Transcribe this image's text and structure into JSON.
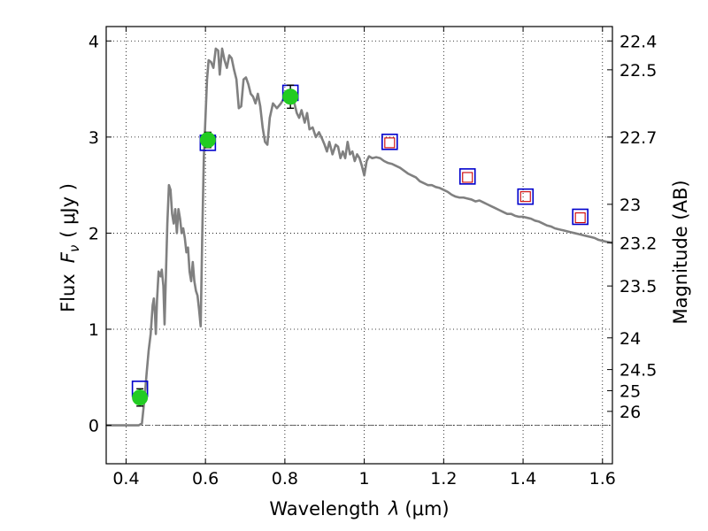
{
  "chart_data": {
    "type": "line",
    "xlabel_prefix": "Wavelength",
    "xlabel_symbol": "λ",
    "xlabel_unit": "(μm)",
    "ylabel_prefix": "Flux",
    "ylabel_symbol": "F",
    "ylabel_subscript": "ν",
    "ylabel_unit": "( μJy )",
    "y2label": "Magnitude (AB)",
    "xlim": [
      0.35,
      1.625
    ],
    "ylim": [
      -0.4,
      4.15
    ],
    "grid": true,
    "x_ticks": [
      0.4,
      0.6,
      0.8,
      1.0,
      1.2,
      1.4,
      1.6
    ],
    "x_tick_labels": [
      "0.4",
      "0.6",
      "0.8",
      "1",
      "1.2",
      "1.4",
      "1.6"
    ],
    "y_ticks": [
      0,
      1,
      2,
      3,
      4
    ],
    "y_tick_labels": [
      "0",
      "1",
      "2",
      "3",
      "4"
    ],
    "magnitude_ticks": [
      {
        "label": "22.4",
        "flux": 4.0
      },
      {
        "label": "22.5",
        "flux": 3.7
      },
      {
        "label": "22.7",
        "flux": 3.0
      },
      {
        "label": "23",
        "flux": 2.3
      },
      {
        "label": "23.2",
        "flux": 1.9
      },
      {
        "label": "23.5",
        "flux": 1.45
      },
      {
        "label": "24",
        "flux": 0.91
      },
      {
        "label": "24.5",
        "flux": 0.58
      },
      {
        "label": "25",
        "flux": 0.36
      },
      {
        "label": "26",
        "flux": 0.145
      }
    ],
    "model_color": "#808080",
    "model_spectrum": [
      [
        0.35,
        0
      ],
      [
        0.38,
        0
      ],
      [
        0.4,
        0
      ],
      [
        0.42,
        0
      ],
      [
        0.432,
        0
      ],
      [
        0.44,
        0.02
      ],
      [
        0.447,
        0.3
      ],
      [
        0.452,
        0.55
      ],
      [
        0.457,
        0.78
      ],
      [
        0.462,
        0.95
      ],
      [
        0.467,
        1.25
      ],
      [
        0.47,
        1.32
      ],
      [
        0.473,
        1.15
      ],
      [
        0.475,
        0.95
      ],
      [
        0.478,
        1.3
      ],
      [
        0.482,
        1.6
      ],
      [
        0.487,
        1.55
      ],
      [
        0.49,
        1.62
      ],
      [
        0.494,
        1.45
      ],
      [
        0.497,
        1.05
      ],
      [
        0.5,
        1.5
      ],
      [
        0.504,
        2.1
      ],
      [
        0.508,
        2.5
      ],
      [
        0.512,
        2.45
      ],
      [
        0.516,
        2.2
      ],
      [
        0.52,
        2.1
      ],
      [
        0.524,
        2.25
      ],
      [
        0.528,
        2.0
      ],
      [
        0.532,
        2.25
      ],
      [
        0.536,
        2.15
      ],
      [
        0.54,
        2.0
      ],
      [
        0.544,
        2.05
      ],
      [
        0.548,
        1.95
      ],
      [
        0.552,
        1.8
      ],
      [
        0.556,
        1.85
      ],
      [
        0.56,
        1.6
      ],
      [
        0.564,
        1.5
      ],
      [
        0.568,
        1.7
      ],
      [
        0.572,
        1.5
      ],
      [
        0.576,
        1.4
      ],
      [
        0.58,
        1.35
      ],
      [
        0.584,
        1.2
      ],
      [
        0.588,
        1.03
      ],
      [
        0.592,
        2.0
      ],
      [
        0.596,
        2.8
      ],
      [
        0.6,
        3.2
      ],
      [
        0.604,
        3.6
      ],
      [
        0.608,
        3.8
      ],
      [
        0.614,
        3.78
      ],
      [
        0.62,
        3.72
      ],
      [
        0.626,
        3.92
      ],
      [
        0.632,
        3.9
      ],
      [
        0.636,
        3.65
      ],
      [
        0.642,
        3.92
      ],
      [
        0.648,
        3.8
      ],
      [
        0.654,
        3.72
      ],
      [
        0.66,
        3.85
      ],
      [
        0.666,
        3.82
      ],
      [
        0.672,
        3.7
      ],
      [
        0.678,
        3.6
      ],
      [
        0.684,
        3.3
      ],
      [
        0.69,
        3.32
      ],
      [
        0.696,
        3.6
      ],
      [
        0.702,
        3.62
      ],
      [
        0.708,
        3.55
      ],
      [
        0.714,
        3.45
      ],
      [
        0.72,
        3.42
      ],
      [
        0.726,
        3.35
      ],
      [
        0.732,
        3.45
      ],
      [
        0.738,
        3.32
      ],
      [
        0.744,
        3.1
      ],
      [
        0.75,
        2.95
      ],
      [
        0.756,
        2.92
      ],
      [
        0.762,
        3.2
      ],
      [
        0.77,
        3.35
      ],
      [
        0.78,
        3.3
      ],
      [
        0.79,
        3.35
      ],
      [
        0.8,
        3.42
      ],
      [
        0.81,
        3.45
      ],
      [
        0.82,
        3.42
      ],
      [
        0.83,
        3.25
      ],
      [
        0.836,
        3.2
      ],
      [
        0.842,
        3.28
      ],
      [
        0.85,
        3.15
      ],
      [
        0.856,
        3.25
      ],
      [
        0.862,
        3.08
      ],
      [
        0.87,
        3.1
      ],
      [
        0.878,
        3.0
      ],
      [
        0.886,
        3.05
      ],
      [
        0.894,
        2.98
      ],
      [
        0.9,
        2.92
      ],
      [
        0.906,
        2.85
      ],
      [
        0.912,
        2.95
      ],
      [
        0.92,
        2.82
      ],
      [
        0.928,
        2.92
      ],
      [
        0.934,
        2.9
      ],
      [
        0.94,
        2.78
      ],
      [
        0.946,
        2.85
      ],
      [
        0.952,
        2.78
      ],
      [
        0.958,
        2.95
      ],
      [
        0.964,
        2.82
      ],
      [
        0.97,
        2.85
      ],
      [
        0.976,
        2.75
      ],
      [
        0.982,
        2.82
      ],
      [
        0.988,
        2.78
      ],
      [
        0.994,
        2.7
      ],
      [
        1.0,
        2.6
      ],
      [
        1.006,
        2.75
      ],
      [
        1.012,
        2.8
      ],
      [
        1.02,
        2.78
      ],
      [
        1.03,
        2.79
      ],
      [
        1.04,
        2.78
      ],
      [
        1.05,
        2.75
      ],
      [
        1.06,
        2.73
      ],
      [
        1.07,
        2.72
      ],
      [
        1.08,
        2.7
      ],
      [
        1.09,
        2.68
      ],
      [
        1.1,
        2.65
      ],
      [
        1.11,
        2.62
      ],
      [
        1.12,
        2.6
      ],
      [
        1.13,
        2.58
      ],
      [
        1.14,
        2.54
      ],
      [
        1.15,
        2.52
      ],
      [
        1.16,
        2.5
      ],
      [
        1.17,
        2.5
      ],
      [
        1.18,
        2.48
      ],
      [
        1.19,
        2.47
      ],
      [
        1.2,
        2.45
      ],
      [
        1.21,
        2.43
      ],
      [
        1.22,
        2.4
      ],
      [
        1.23,
        2.38
      ],
      [
        1.24,
        2.37
      ],
      [
        1.25,
        2.37
      ],
      [
        1.26,
        2.36
      ],
      [
        1.27,
        2.35
      ],
      [
        1.28,
        2.33
      ],
      [
        1.29,
        2.34
      ],
      [
        1.3,
        2.32
      ],
      [
        1.31,
        2.3
      ],
      [
        1.32,
        2.28
      ],
      [
        1.33,
        2.26
      ],
      [
        1.34,
        2.24
      ],
      [
        1.35,
        2.22
      ],
      [
        1.36,
        2.2
      ],
      [
        1.37,
        2.2
      ],
      [
        1.38,
        2.18
      ],
      [
        1.39,
        2.17
      ],
      [
        1.4,
        2.17
      ],
      [
        1.41,
        2.16
      ],
      [
        1.42,
        2.15
      ],
      [
        1.43,
        2.13
      ],
      [
        1.44,
        2.12
      ],
      [
        1.45,
        2.1
      ],
      [
        1.46,
        2.08
      ],
      [
        1.47,
        2.07
      ],
      [
        1.48,
        2.05
      ],
      [
        1.49,
        2.04
      ],
      [
        1.5,
        2.03
      ],
      [
        1.51,
        2.02
      ],
      [
        1.52,
        2.01
      ],
      [
        1.53,
        2.0
      ],
      [
        1.54,
        1.99
      ],
      [
        1.55,
        1.98
      ],
      [
        1.56,
        1.97
      ],
      [
        1.57,
        1.96
      ],
      [
        1.58,
        1.95
      ],
      [
        1.59,
        1.93
      ],
      [
        1.6,
        1.92
      ],
      [
        1.61,
        1.91
      ],
      [
        1.625,
        1.9
      ]
    ],
    "observed": {
      "color": "#22cc22",
      "points": [
        {
          "x": 0.435,
          "y": 0.29,
          "err": 0.09
        },
        {
          "x": 0.606,
          "y": 2.97,
          "err": 0.08
        },
        {
          "x": 0.814,
          "y": 3.42,
          "err": 0.12
        }
      ]
    },
    "model_photometry": {
      "color": "#0000cc",
      "points": [
        {
          "x": 0.435,
          "y": 0.38
        },
        {
          "x": 0.606,
          "y": 2.94
        },
        {
          "x": 0.814,
          "y": 3.46
        },
        {
          "x": 1.064,
          "y": 2.95
        },
        {
          "x": 1.26,
          "y": 2.59
        },
        {
          "x": 1.406,
          "y": 2.38
        },
        {
          "x": 1.544,
          "y": 2.17
        }
      ]
    },
    "predicted": {
      "color": "#cc0000",
      "points": [
        {
          "x": 1.064,
          "y": 2.94
        },
        {
          "x": 1.26,
          "y": 2.58
        },
        {
          "x": 1.406,
          "y": 2.38
        },
        {
          "x": 1.544,
          "y": 2.16
        }
      ]
    }
  }
}
